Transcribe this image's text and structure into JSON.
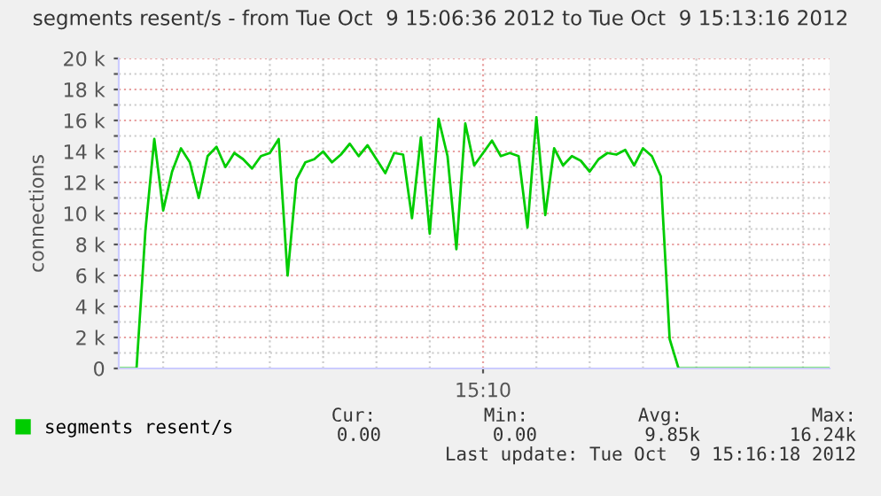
{
  "chart_data": {
    "type": "line",
    "title": "segments resent/s - from Tue Oct  9 15:06:36 2012 to Tue Oct  9 15:13:16 2012",
    "ylabel": "connections",
    "categories": [
      null,
      null,
      null,
      null,
      null,
      null,
      null,
      null,
      null,
      null,
      null,
      null,
      null,
      null,
      null,
      null,
      null,
      null,
      null,
      null,
      null,
      null,
      null,
      null,
      null,
      null,
      null,
      null,
      null,
      null,
      null,
      null,
      null,
      null,
      null,
      null,
      null,
      null,
      null,
      null,
      null,
      "15:10",
      null,
      null,
      null,
      null,
      null,
      null,
      null,
      null,
      null,
      null,
      null,
      null,
      null,
      null,
      null,
      null,
      null,
      null,
      null,
      null,
      null,
      null,
      null,
      null,
      null,
      null,
      null,
      null,
      null,
      null,
      null,
      null,
      null,
      null,
      null,
      null,
      null,
      null,
      null
    ],
    "series": [
      {
        "name": "segments resent/s",
        "color": "#00cc00",
        "values": [
          0,
          0,
          0,
          8900,
          14800,
          10200,
          12700,
          14200,
          13300,
          11000,
          13700,
          14300,
          13000,
          13900,
          13500,
          12900,
          13700,
          13900,
          14800,
          6000,
          12200,
          13300,
          13500,
          14000,
          13300,
          13800,
          14500,
          13700,
          14400,
          13500,
          12600,
          13900,
          13800,
          9700,
          14900,
          8700,
          16100,
          13700,
          7700,
          15800,
          13100,
          13900,
          14700,
          13700,
          13900,
          13700,
          9100,
          16200,
          9900,
          14200,
          13100,
          13700,
          13400,
          12700,
          13500,
          13900,
          13800,
          14100,
          13100,
          14200,
          13700,
          12400,
          1900,
          0,
          0,
          0,
          0,
          0,
          0,
          0,
          0,
          0,
          0,
          0,
          0,
          0,
          0,
          0,
          0,
          0,
          0
        ]
      }
    ],
    "ylim": [
      0,
      20000
    ],
    "yticks": [
      {
        "value": 0,
        "label": "0"
      },
      {
        "value": 1000,
        "label": null
      },
      {
        "value": 2000,
        "label": "2 k"
      },
      {
        "value": 3000,
        "label": null
      },
      {
        "value": 4000,
        "label": "4 k"
      },
      {
        "value": 5000,
        "label": null
      },
      {
        "value": 6000,
        "label": "6 k"
      },
      {
        "value": 7000,
        "label": null
      },
      {
        "value": 8000,
        "label": "8 k"
      },
      {
        "value": 9000,
        "label": null
      },
      {
        "value": 10000,
        "label": "10 k"
      },
      {
        "value": 11000,
        "label": null
      },
      {
        "value": 12000,
        "label": "12 k"
      },
      {
        "value": 13000,
        "label": null
      },
      {
        "value": 14000,
        "label": "14 k"
      },
      {
        "value": 15000,
        "label": null
      },
      {
        "value": 16000,
        "label": "16 k"
      },
      {
        "value": 17000,
        "label": null
      },
      {
        "value": 18000,
        "label": "18 k"
      },
      {
        "value": 19000,
        "label": null
      },
      {
        "value": 20000,
        "label": "20 k"
      }
    ],
    "grid": true,
    "legend": "bottom",
    "marker": "none",
    "line_style": "solid",
    "annotations": [
      "Cur:",
      "Min:",
      "Avg:",
      "Max:",
      "0.00",
      "0.00",
      "9.85k",
      "16.24k",
      "Last update: Tue Oct  9 15:16:18 2012"
    ]
  }
}
